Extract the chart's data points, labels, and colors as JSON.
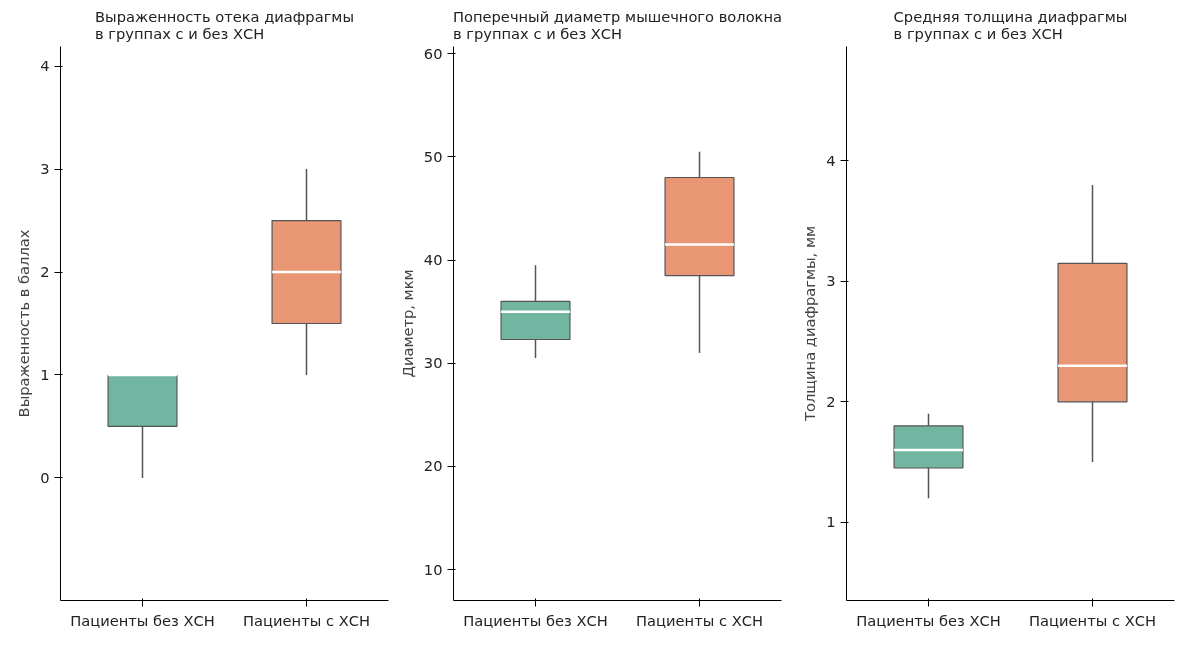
{
  "chart_data": [
    {
      "type": "box",
      "title": "Выраженность отека диафрагмы\nв группах с и без ХСН",
      "ylabel": "Выраженность в баллах",
      "categories": [
        "Пациенты без ХСН",
        "Пациенты с ХСН"
      ],
      "colors": [
        "#72b6a1",
        "#e99675"
      ],
      "ylim": [
        -1.19,
        4.19
      ],
      "yticks": [
        0,
        1,
        2,
        3,
        4
      ],
      "grid": false,
      "boxes": [
        {
          "low": 0,
          "q1": 0.5,
          "median": 1.0,
          "q3": 1.0,
          "high": 1.0
        },
        {
          "low": 1,
          "q1": 1.5,
          "median": 2,
          "q3": 2.5,
          "high": 3
        }
      ]
    },
    {
      "type": "box",
      "title": "Поперечный диаметр мышечного волокна\nв группах с и без ХСН",
      "ylabel": "Диаметр, мкм",
      "categories": [
        "Пациенты без ХСН",
        "Пациенты с ХСН"
      ],
      "colors": [
        "#72b6a1",
        "#e99675"
      ],
      "ylim": [
        7.0,
        60.7
      ],
      "yticks": [
        10,
        20,
        30,
        40,
        50,
        60
      ],
      "grid": false,
      "boxes": [
        {
          "low": 30.5,
          "q1": 32.3,
          "median": 35,
          "q3": 36,
          "high": 39.5
        },
        {
          "low": 31,
          "q1": 38.5,
          "median": 41.5,
          "q3": 48,
          "high": 50.5
        }
      ]
    },
    {
      "type": "box",
      "title": "Средняя толщина диафрагмы\nв группах с и без ХСН",
      "ylabel": "Толщина диафрагмы, мм",
      "categories": [
        "Пациенты без ХСН",
        "Пациенты с ХСН"
      ],
      "colors": [
        "#72b6a1",
        "#e99675"
      ],
      "ylim": [
        0.35,
        4.95
      ],
      "yticks": [
        1,
        2,
        3,
        4
      ],
      "grid": false,
      "boxes": [
        {
          "low": 1.2,
          "q1": 1.45,
          "median": 1.6,
          "q3": 1.8,
          "high": 1.9
        },
        {
          "low": 1.5,
          "q1": 2.0,
          "median": 2.3,
          "q3": 3.15,
          "high": 3.8
        }
      ]
    }
  ]
}
